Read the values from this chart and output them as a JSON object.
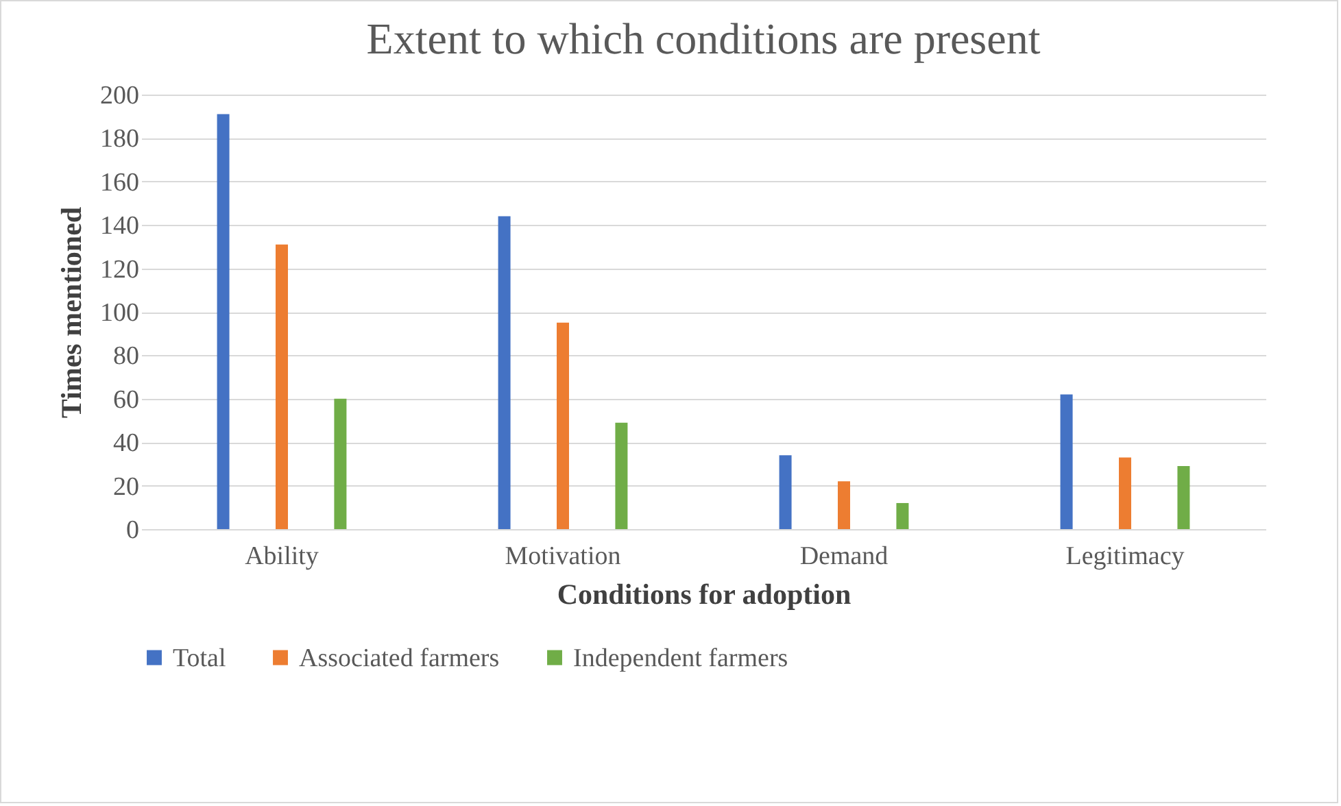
{
  "chart_data": {
    "type": "bar",
    "title": "Extent to which conditions are present",
    "xlabel": "Conditions for adoption",
    "ylabel": "Times mentioned",
    "categories": [
      "Ability",
      "Motivation",
      "Demand",
      "Legitimacy"
    ],
    "series": [
      {
        "name": "Total",
        "color": "#4472c4",
        "values": [
          191,
          144,
          34,
          62
        ]
      },
      {
        "name": "Associated farmers",
        "color": "#ed7d31",
        "values": [
          131,
          95,
          22,
          33
        ]
      },
      {
        "name": "Independent farmers",
        "color": "#70ad47",
        "values": [
          60,
          49,
          12,
          29
        ]
      }
    ],
    "ylim": [
      0,
      200
    ],
    "yticks": [
      0,
      20,
      40,
      60,
      80,
      100,
      120,
      140,
      160,
      180,
      200
    ],
    "grid": "y",
    "legend": "bottom"
  }
}
